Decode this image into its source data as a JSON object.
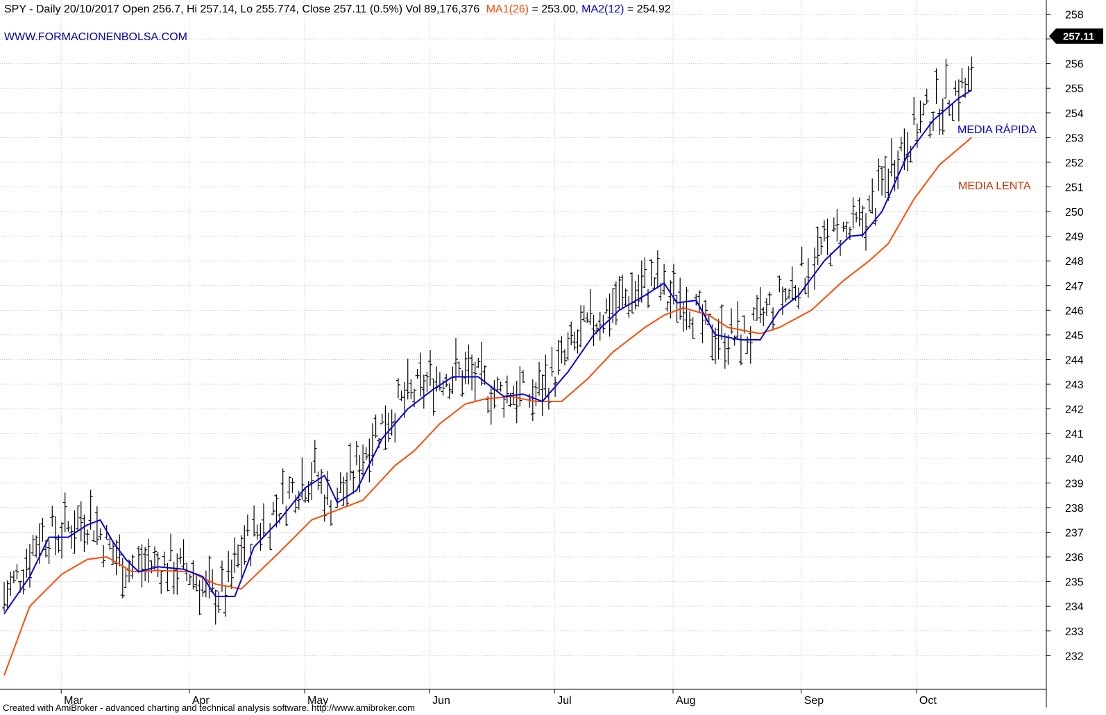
{
  "header": {
    "title": "SPY - Daily 20/10/2017 Open 256.7, Hi 257.14, Lo 255.774, Close 257.11 (0.5%) Vol 89,176,376",
    "ma1_label": "MA1(26)",
    "ma1_value": " = 253.00, ",
    "ma2_label": "MA2(12)",
    "ma2_value": " = 254.92"
  },
  "watermark": "WWW.FORMACIONENBOLSA.COM",
  "footer": "Created with AmiBroker - advanced charting and technical analysis software. http://www.amibroker.com",
  "labels": {
    "fast": "MEDIA RÁPIDA",
    "slow": "MEDIA LENTA"
  },
  "last_price_label": "257.11",
  "colors": {
    "fast": "#0000e0",
    "slow": "#ff4a00",
    "bars": "#000000",
    "grid": "#c8c8c8",
    "price_tag": "#000000"
  },
  "chart_data": {
    "type": "ohlc",
    "ylim": [
      231,
      258.5
    ],
    "yticks": [
      232,
      233,
      234,
      235,
      236,
      237,
      238,
      239,
      240,
      241,
      242,
      243,
      244,
      245,
      246,
      247,
      248,
      249,
      250,
      251,
      252,
      253,
      254,
      255,
      256,
      257,
      258
    ],
    "months": [
      {
        "label": "Mar",
        "index": 10
      },
      {
        "label": "Apr",
        "index": 50
      },
      {
        "label": "May",
        "index": 86
      },
      {
        "label": "Jun",
        "index": 125
      },
      {
        "label": "Jul",
        "index": 164
      },
      {
        "label": "Aug",
        "index": 201
      },
      {
        "label": "Sep",
        "index": 241
      },
      {
        "label": "Oct",
        "index": 277
      }
    ],
    "series": [
      {
        "name": "MA1(26)",
        "color": "#ff4a00",
        "points": [
          [
            0,
            231.2
          ],
          [
            8,
            234.0
          ],
          [
            18,
            235.3
          ],
          [
            26,
            235.9
          ],
          [
            32,
            236.0
          ],
          [
            40,
            235.4
          ],
          [
            48,
            235.45
          ],
          [
            58,
            235.4
          ],
          [
            66,
            234.9
          ],
          [
            74,
            234.7
          ],
          [
            86,
            236.2
          ],
          [
            96,
            237.5
          ],
          [
            104,
            237.9
          ],
          [
            112,
            238.3
          ],
          [
            122,
            239.7
          ],
          [
            128,
            240.3
          ],
          [
            136,
            241.4
          ],
          [
            144,
            242.2
          ],
          [
            150,
            242.4
          ],
          [
            158,
            242.5
          ],
          [
            166,
            242.3
          ],
          [
            174,
            242.3
          ],
          [
            182,
            243.2
          ],
          [
            190,
            244.3
          ],
          [
            200,
            245.3
          ],
          [
            206,
            245.8
          ],
          [
            212,
            246.1
          ],
          [
            220,
            245.8
          ],
          [
            226,
            245.3
          ],
          [
            236,
            245.05
          ],
          [
            242,
            245.3
          ],
          [
            252,
            246.0
          ],
          [
            262,
            247.2
          ],
          [
            270,
            248.0
          ],
          [
            276,
            248.7
          ],
          [
            284,
            250.5
          ],
          [
            292,
            251.9
          ],
          [
            302,
            253.0
          ]
        ]
      },
      {
        "name": "MA2(12)",
        "color": "#0000e0",
        "points": [
          [
            0,
            233.7
          ],
          [
            8,
            235.2
          ],
          [
            14,
            236.8
          ],
          [
            20,
            236.8
          ],
          [
            26,
            237.3
          ],
          [
            30,
            237.5
          ],
          [
            34,
            236.6
          ],
          [
            38,
            235.9
          ],
          [
            42,
            235.4
          ],
          [
            48,
            235.6
          ],
          [
            56,
            235.5
          ],
          [
            62,
            235.2
          ],
          [
            66,
            234.4
          ],
          [
            72,
            234.4
          ],
          [
            78,
            236.4
          ],
          [
            86,
            237.5
          ],
          [
            94,
            238.8
          ],
          [
            100,
            239.3
          ],
          [
            104,
            238.2
          ],
          [
            110,
            238.7
          ],
          [
            118,
            240.8
          ],
          [
            126,
            242.0
          ],
          [
            134,
            242.8
          ],
          [
            140,
            243.3
          ],
          [
            148,
            243.3
          ],
          [
            152,
            242.9
          ],
          [
            156,
            242.5
          ],
          [
            162,
            242.6
          ],
          [
            168,
            242.3
          ],
          [
            176,
            243.5
          ],
          [
            184,
            245.0
          ],
          [
            192,
            246.0
          ],
          [
            200,
            246.6
          ],
          [
            206,
            247.1
          ],
          [
            210,
            246.3
          ],
          [
            216,
            246.4
          ],
          [
            222,
            245.0
          ],
          [
            230,
            244.8
          ],
          [
            236,
            244.8
          ],
          [
            242,
            246.0
          ],
          [
            248,
            246.6
          ],
          [
            256,
            248.0
          ],
          [
            264,
            249.0
          ],
          [
            268,
            249.05
          ],
          [
            274,
            250.0
          ],
          [
            282,
            252.3
          ],
          [
            290,
            253.7
          ],
          [
            298,
            254.6
          ],
          [
            302,
            254.92
          ]
        ]
      }
    ]
  }
}
